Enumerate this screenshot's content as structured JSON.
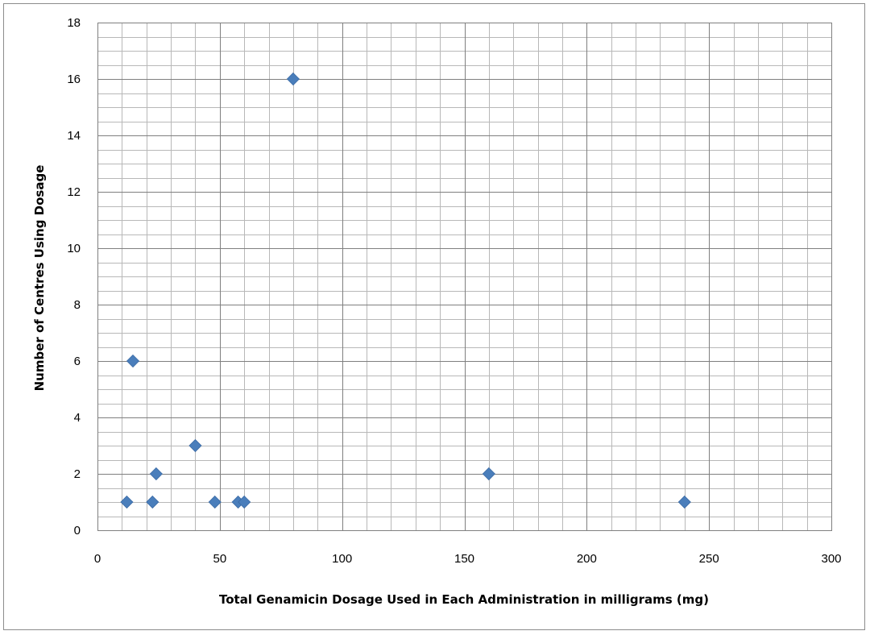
{
  "chart_data": {
    "type": "scatter",
    "title": "",
    "xlabel": "Total Genamicin Dosage  Used in Each  Administration in milligrams (mg)",
    "ylabel": "Number of Centres Using Dosage",
    "xlim": [
      0,
      300
    ],
    "ylim": [
      0,
      18
    ],
    "x_ticks": [
      0,
      50,
      100,
      150,
      200,
      250,
      300
    ],
    "y_ticks": [
      0,
      2,
      4,
      6,
      8,
      10,
      12,
      14,
      16,
      18
    ],
    "x_minor_step": 10,
    "y_minor_step": 0.5,
    "grid": true,
    "legend": "none",
    "marker": "diamond",
    "marker_color": "#4a7ebb",
    "series": [
      {
        "points": [
          {
            "x": 12,
            "y": 1
          },
          {
            "x": 14.5,
            "y": 6
          },
          {
            "x": 22.5,
            "y": 1
          },
          {
            "x": 24,
            "y": 2
          },
          {
            "x": 40,
            "y": 3
          },
          {
            "x": 48,
            "y": 1
          },
          {
            "x": 57.5,
            "y": 1
          },
          {
            "x": 60,
            "y": 1
          },
          {
            "x": 80,
            "y": 16
          },
          {
            "x": 160,
            "y": 2
          },
          {
            "x": 240,
            "y": 1
          }
        ]
      }
    ]
  }
}
